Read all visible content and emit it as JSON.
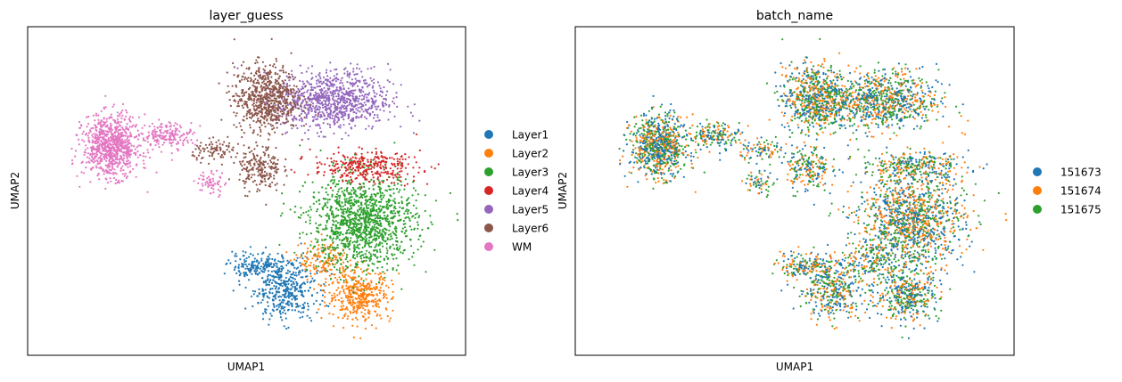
{
  "chart_data": [
    {
      "type": "scatter",
      "title": "layer_guess",
      "xlabel": "UMAP1",
      "ylabel": "UMAP2",
      "grid": false,
      "ticks": false,
      "legend_position": "right, outside",
      "series": [
        {
          "name": "Layer1",
          "color": "#1f77b4",
          "clusters": [
            {
              "center": [
                5.8,
                2.6
              ],
              "spread": [
                0.9,
                1.2
              ],
              "n": 420
            },
            {
              "center": [
                4.9,
                3.6
              ],
              "spread": [
                0.8,
                0.5
              ],
              "n": 160
            }
          ]
        },
        {
          "name": "Layer2",
          "color": "#ff7f0e",
          "clusters": [
            {
              "center": [
                8.1,
                2.3
              ],
              "spread": [
                0.9,
                1.0
              ],
              "n": 420
            },
            {
              "center": [
                7.0,
                3.8
              ],
              "spread": [
                0.7,
                0.8
              ],
              "n": 140
            }
          ]
        },
        {
          "name": "Layer3",
          "color": "#2ca02c",
          "clusters": [
            {
              "center": [
                8.2,
                5.5
              ],
              "spread": [
                1.5,
                1.9
              ],
              "n": 1250
            }
          ]
        },
        {
          "name": "Layer4",
          "color": "#d62728",
          "clusters": [
            {
              "center": [
                8.3,
                7.9
              ],
              "spread": [
                1.5,
                0.6
              ],
              "n": 320
            }
          ]
        },
        {
          "name": "Layer5",
          "color": "#9467bd",
          "clusters": [
            {
              "center": [
                7.3,
                10.8
              ],
              "spread": [
                1.6,
                1.2
              ],
              "n": 900
            }
          ]
        },
        {
          "name": "Layer6",
          "color": "#8c564b",
          "clusters": [
            {
              "center": [
                5.2,
                10.9
              ],
              "spread": [
                0.9,
                1.3
              ],
              "n": 700
            },
            {
              "center": [
                5.0,
                7.8
              ],
              "spread": [
                0.6,
                0.9
              ],
              "n": 200
            },
            {
              "center": [
                3.7,
                8.6
              ],
              "spread": [
                0.7,
                0.4
              ],
              "n": 90
            }
          ]
        },
        {
          "name": "WM",
          "color": "#e377c2",
          "clusters": [
            {
              "center": [
                0.4,
                8.8
              ],
              "spread": [
                0.8,
                1.2
              ],
              "n": 850
            },
            {
              "center": [
                2.2,
                9.3
              ],
              "spread": [
                0.7,
                0.5
              ],
              "n": 170
            },
            {
              "center": [
                3.5,
                7.2
              ],
              "spread": [
                0.4,
                0.5
              ],
              "n": 60
            }
          ]
        }
      ]
    },
    {
      "type": "scatter",
      "title": "batch_name",
      "xlabel": "UMAP1",
      "ylabel": "UMAP2",
      "grid": false,
      "ticks": false,
      "legend_position": "right, outside",
      "series": [
        {
          "name": "151673",
          "color": "#1f77b4",
          "share": 0.34
        },
        {
          "name": "151674",
          "color": "#ff7f0e",
          "share": 0.33
        },
        {
          "name": "151675",
          "color": "#2ca02c",
          "share": 0.33
        }
      ]
    }
  ]
}
